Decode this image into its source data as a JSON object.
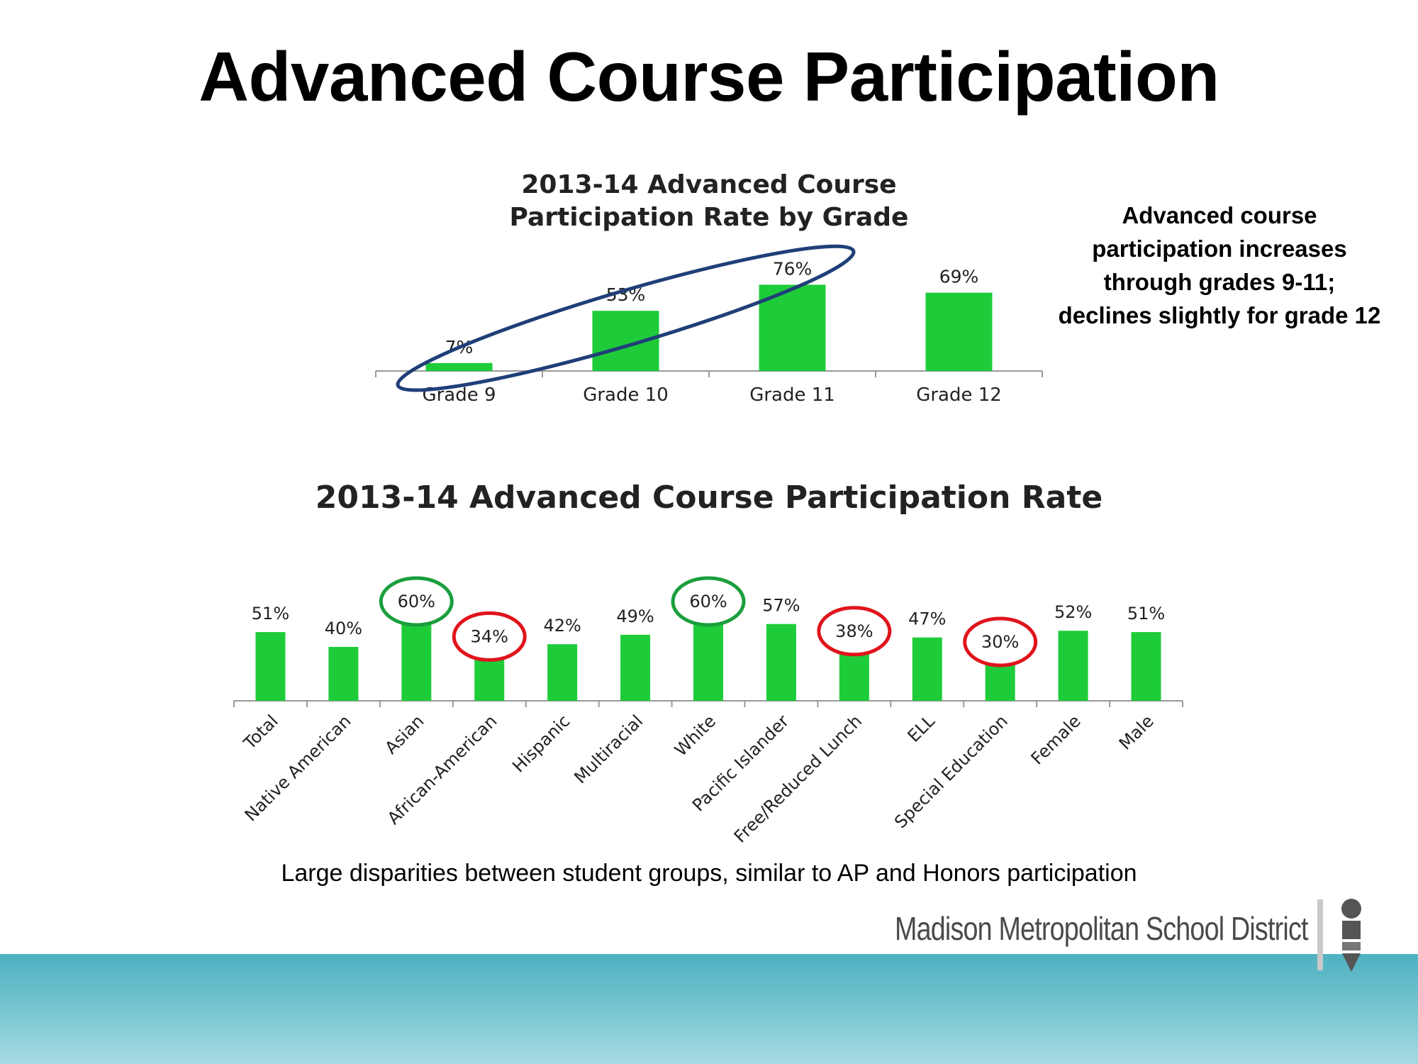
{
  "slide": {
    "title": "Advanced Course Participation",
    "side_note": "Advanced course participation increases through grades 9-11; declines slightly for grade 12",
    "footnote": "Large disparities between student groups, similar to AP and Honors participation",
    "logo_text": "Madison Metropolitan School District"
  },
  "colors": {
    "bar": "#1ecc3a",
    "highlight_blue": "#1f3f78",
    "highlight_green": "#1a9e3c",
    "highlight_red": "#e0141b"
  },
  "chart_data": [
    {
      "type": "bar",
      "title": "2013-14 Advanced Course Participation Rate by Grade",
      "categories": [
        "Grade 9",
        "Grade 10",
        "Grade 11",
        "Grade 12"
      ],
      "values": [
        7,
        53,
        76,
        69
      ],
      "value_labels": [
        "7%",
        "53%",
        "76%",
        "69%"
      ],
      "ylim": [
        0,
        100
      ],
      "grid": false,
      "highlight": {
        "shape": "ellipse",
        "color": "#1f3f78",
        "categories": [
          "Grade 9",
          "Grade 10",
          "Grade 11"
        ]
      }
    },
    {
      "type": "bar",
      "title": "2013-14 Advanced Course Participation Rate",
      "categories": [
        "Total",
        "Native American",
        "Asian",
        "African-American",
        "Hispanic",
        "Multiracial",
        "White",
        "Pacific Islander",
        "Free/Reduced Lunch",
        "ELL",
        "Special Education",
        "Female",
        "Male"
      ],
      "values": [
        51,
        40,
        60,
        34,
        42,
        49,
        60,
        57,
        38,
        47,
        30,
        52,
        51
      ],
      "value_labels": [
        "51%",
        "40%",
        "60%",
        "34%",
        "42%",
        "49%",
        "60%",
        "57%",
        "38%",
        "47%",
        "30%",
        "52%",
        "51%"
      ],
      "ylim": [
        0,
        100
      ],
      "grid": false,
      "highlights": [
        {
          "category": "Asian",
          "color": "#1a9e3c"
        },
        {
          "category": "White",
          "color": "#1a9e3c"
        },
        {
          "category": "African-American",
          "color": "#e0141b"
        },
        {
          "category": "Free/Reduced Lunch",
          "color": "#e0141b"
        },
        {
          "category": "Special Education",
          "color": "#e0141b"
        }
      ]
    }
  ]
}
